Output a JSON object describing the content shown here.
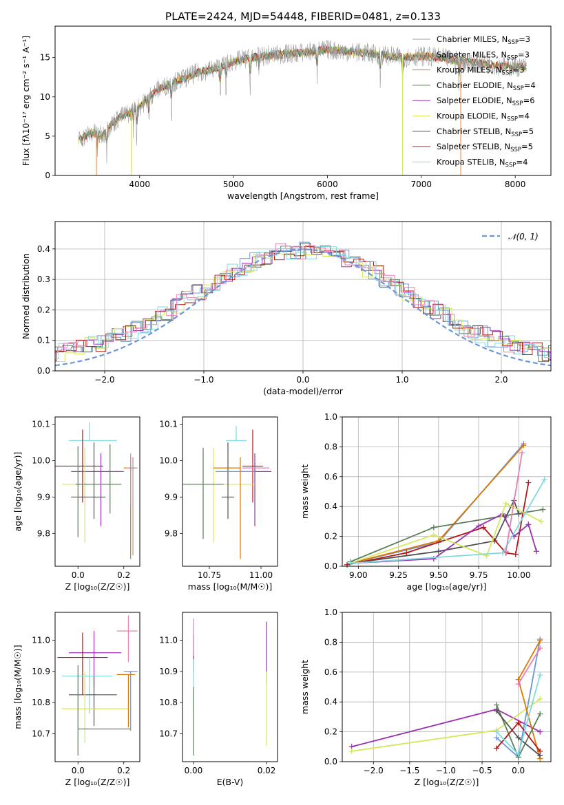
{
  "title": "PLATE=2424, MJD=54448, FIBERID=0481, z=0.133",
  "colors": {
    "Chabrier MILES": "#9e9e9e",
    "Salpeter MILES": "#f08c3c",
    "Kroupa MILES": "#dc7800",
    "Chabrier ELODIE": "#5a7f5a",
    "Salpeter ELODIE": "#9a2fb0",
    "Kroupa ELODIE": "#d4e85a",
    "Chabrier STELIB": "#505050",
    "Salpeter STELIB": "#b01818",
    "Kroupa STELIB": "#7fd8e0",
    "extra_pink": "#e87fb4",
    "extra_blue": "#6b95d8",
    "grid": "#b0b0b0"
  },
  "chart_data": [
    {
      "id": "spectrum",
      "type": "line",
      "xlabel": "wavelength [Angstrom, rest frame]",
      "ylabel": "Flux [fλ10⁻¹⁷ erg cm⁻² s⁻¹ A⁻¹]",
      "xlim": [
        3100,
        8380
      ],
      "ylim": [
        0,
        19
      ],
      "xticks": [
        4000,
        5000,
        6000,
        7000,
        8000
      ],
      "yticks": [
        0,
        5,
        10,
        15
      ],
      "grid": false,
      "legend_position": "right",
      "envelope": {
        "x": [
          3350,
          3500,
          3600,
          3700,
          3800,
          3900,
          4000,
          4100,
          4200,
          4300,
          4400,
          4500,
          4600,
          4700,
          4800,
          4900,
          5000,
          5200,
          5400,
          5600,
          5800,
          6000,
          6200,
          6400,
          6600,
          6800,
          7000,
          7200,
          7400,
          7600,
          7800,
          8000,
          8120
        ],
        "y": [
          4.5,
          5.5,
          5.0,
          6.5,
          7.5,
          8.0,
          8.7,
          10.0,
          11.0,
          11.5,
          12.0,
          12.5,
          13.0,
          13.3,
          13.6,
          14.0,
          14.5,
          15.0,
          15.3,
          15.5,
          15.7,
          16.0,
          15.8,
          15.6,
          15.3,
          15.0,
          15.2,
          15.0,
          14.6,
          14.3,
          14.0,
          13.8,
          13.8
        ]
      },
      "absorption_features": [
        3550,
        3650,
        3934,
        3969,
        4100,
        4340,
        4861,
        4920,
        5175,
        5270,
        5890,
        6563,
        6800,
        7400
      ],
      "series": [
        {
          "name": "Chabrier MILES, N_SSP=3",
          "label": "Chabrier MILES, N",
          "sub": "SSP",
          "value": "=3",
          "color": "Chabrier MILES"
        },
        {
          "name": "Salpeter MILES, N_SSP=3",
          "label": "Salpeter MILES, N",
          "sub": "SSP",
          "value": "=3",
          "color": "Salpeter MILES"
        },
        {
          "name": "Kroupa MILES, N_SSP=3",
          "label": "Kroupa MILES, N",
          "sub": "SSP",
          "value": "=3",
          "color": "Kroupa MILES"
        },
        {
          "name": "Chabrier ELODIE, N_SSP=4",
          "label": "Chabrier ELODIE, N",
          "sub": "SSP",
          "value": "=4",
          "color": "Chabrier ELODIE"
        },
        {
          "name": "Salpeter ELODIE, N_SSP=6",
          "label": "Salpeter ELODIE, N",
          "sub": "SSP",
          "value": "=6",
          "color": "Salpeter ELODIE"
        },
        {
          "name": "Kroupa ELODIE, N_SSP=4",
          "label": "Kroupa ELODIE, N",
          "sub": "SSP",
          "value": "=4",
          "color": "Kroupa ELODIE"
        },
        {
          "name": "Chabrier STELIB, N_SSP=5",
          "label": "Chabrier STELIB, N",
          "sub": "SSP",
          "value": "=5",
          "color": "Chabrier STELIB"
        },
        {
          "name": "Salpeter STELIB, N_SSP=5",
          "label": "Salpeter STELIB, N",
          "sub": "SSP",
          "value": "=5",
          "color": "Salpeter STELIB"
        },
        {
          "name": "Kroupa STELIB, N_SSP=4",
          "label": "Kroupa STELIB, N",
          "sub": "SSP",
          "value": "=4",
          "color": "Kroupa STELIB"
        }
      ]
    },
    {
      "id": "residuals",
      "type": "line",
      "xlabel": "(data-model)/error",
      "ylabel": "Normed distribution",
      "xlim": [
        -2.5,
        2.5
      ],
      "ylim": [
        0,
        0.49
      ],
      "xticks": [
        -2,
        -1,
        0,
        1,
        2
      ],
      "yticks": [
        0.0,
        0.1,
        0.2,
        0.3,
        0.4
      ],
      "grid": true,
      "legend_position": "top-right",
      "reference_curve": {
        "name": "N(0,1)",
        "label": "𝒩(0, 1)",
        "mean": 0,
        "sigma": 1,
        "color": "extra_blue"
      },
      "bin_width": 0.1,
      "histogram_colors": [
        "extra_blue",
        "Chabrier ELODIE",
        "Salpeter ELODIE",
        "Kroupa ELODIE",
        "Salpeter STELIB",
        "extra_pink",
        "Kroupa STELIB"
      ]
    },
    {
      "id": "age_vs_Z",
      "type": "scatter",
      "xlabel": "Z [log₁₀(Z/Z☉)]",
      "ylabel": "age  [log₁₀(age/yr)]",
      "xlim": [
        -0.1,
        0.27
      ],
      "ylim": [
        9.71,
        10.12
      ],
      "xticks": [
        0.0,
        0.2
      ],
      "yticks": [
        9.8,
        9.9,
        10.0,
        10.1
      ],
      "grid": false,
      "points": [
        {
          "x": 0.05,
          "y": 10.055,
          "xerr": [
            0.09,
            0.12
          ],
          "yerr": [
            0.0,
            0.05
          ],
          "color": "Kroupa STELIB"
        },
        {
          "x": 0.02,
          "y": 9.985,
          "xerr": [
            0.12,
            0.09
          ],
          "yerr": [
            0.1,
            0.1
          ],
          "color": "Salpeter STELIB"
        },
        {
          "x": 0.1,
          "y": 9.97,
          "xerr": [
            0.13,
            0.1
          ],
          "yerr": [
            0.15,
            0.05
          ],
          "color": "Salpeter ELODIE"
        },
        {
          "x": 0.03,
          "y": 9.935,
          "xerr": [
            0.1,
            0.15
          ],
          "yerr": [
            0.16,
            0.1
          ],
          "color": "Kroupa ELODIE"
        },
        {
          "x": 0.14,
          "y": 9.935,
          "xerr": [
            0.15,
            0.05
          ],
          "yerr": [
            0.08,
            0.11
          ],
          "color": "Chabrier ELODIE"
        },
        {
          "x": 0.07,
          "y": 9.9,
          "xerr": [
            0.1,
            0.05
          ],
          "yerr": [
            0.06,
            0.15
          ],
          "color": "Chabrier STELIB"
        },
        {
          "x": 0.0,
          "y": 9.97,
          "xerr": [
            0.0,
            0.0
          ],
          "yerr": [
            0.18,
            0.07
          ],
          "color": "Chabrier ELODIE"
        },
        {
          "x": 0.23,
          "y": 9.98,
          "xerr": [
            0.03,
            0.02
          ],
          "yerr": [
            0.25,
            0.03
          ],
          "color": "Kroupa MILES"
        },
        {
          "x": 0.23,
          "y": 9.98,
          "xerr": [
            0.02,
            0.02
          ],
          "yerr": [
            0.1,
            0.04
          ],
          "color": "extra_pink"
        },
        {
          "x": 0.24,
          "y": 9.98,
          "xerr": [
            0.02,
            0.02
          ],
          "yerr": [
            0.24,
            0.03
          ],
          "color": "Chabrier MILES"
        }
      ]
    },
    {
      "id": "age_vs_mass",
      "type": "scatter",
      "xlabel": "mass [log₁₀(M/M☉)]",
      "ylabel": "",
      "xlim": [
        10.62,
        11.08
      ],
      "ylim": [
        9.71,
        10.12
      ],
      "xticks": [
        10.75,
        11.0
      ],
      "yticks": [
        9.8,
        9.9,
        10.0,
        10.1
      ],
      "grid": false,
      "points": [
        {
          "x": 10.88,
          "y": 10.055,
          "xerr": [
            0.05,
            0.05
          ],
          "yerr": [
            0.0,
            0.04
          ],
          "color": "Kroupa STELIB"
        },
        {
          "x": 10.96,
          "y": 9.985,
          "xerr": [
            0.05,
            0.05
          ],
          "yerr": [
            0.1,
            0.1
          ],
          "color": "Salpeter STELIB"
        },
        {
          "x": 10.97,
          "y": 9.97,
          "xerr": [
            0.07,
            0.08
          ],
          "yerr": [
            0.15,
            0.05
          ],
          "color": "Salpeter ELODIE"
        },
        {
          "x": 10.77,
          "y": 9.935,
          "xerr": [
            0.13,
            0.2
          ],
          "yerr": [
            0.16,
            0.1
          ],
          "color": "Kroupa ELODIE"
        },
        {
          "x": 10.72,
          "y": 9.935,
          "xerr": [
            0.1,
            0.1
          ],
          "yerr": [
            0.15,
            0.1
          ],
          "color": "Chabrier ELODIE"
        },
        {
          "x": 10.84,
          "y": 9.9,
          "xerr": [
            0.03,
            0.03
          ],
          "yerr": [
            0.06,
            0.15
          ],
          "color": "Chabrier STELIB"
        },
        {
          "x": 10.9,
          "y": 9.98,
          "xerr": [
            0.13,
            0.0
          ],
          "yerr": [
            0.25,
            0.03
          ],
          "color": "Kroupa MILES"
        },
        {
          "x": 10.9,
          "y": 9.97,
          "xerr": [
            0.12,
            0.07
          ],
          "yerr": [
            0.0,
            0.0
          ],
          "color": "extra_blue"
        },
        {
          "x": 10.96,
          "y": 9.98,
          "xerr": [
            0.05,
            0.08
          ],
          "yerr": [
            0.0,
            0.0
          ],
          "color": "extra_pink"
        }
      ]
    },
    {
      "id": "weight_vs_age",
      "type": "line",
      "xlabel": "age  [log₁₀(age/yr)]",
      "ylabel": "mass weight",
      "xlim": [
        8.9,
        10.2
      ],
      "ylim": [
        0,
        1.0
      ],
      "xticks": [
        9.0,
        9.25,
        9.5,
        9.75,
        10.0
      ],
      "yticks": [
        0.0,
        0.2,
        0.4,
        0.6,
        0.8,
        1.0
      ],
      "grid": true,
      "series": [
        {
          "color": "extra_blue",
          "x": [
            8.95,
            9.5,
            10.03
          ],
          "y": [
            0.02,
            0.16,
            0.82
          ]
        },
        {
          "color": "Kroupa MILES",
          "x": [
            8.95,
            9.5,
            10.03
          ],
          "y": [
            0.02,
            0.17,
            0.81
          ]
        },
        {
          "color": "Chabrier ELODIE",
          "x": [
            8.95,
            9.47,
            10.15
          ],
          "y": [
            0.03,
            0.26,
            0.38
          ]
        },
        {
          "color": "Chabrier STELIB",
          "x": [
            8.95,
            9.5,
            9.85,
            9.92,
            9.97,
            10.0
          ],
          "y": [
            0.02,
            0.1,
            0.17,
            0.33,
            0.44,
            0.35
          ]
        },
        {
          "color": "Salpeter STELIB",
          "x": [
            8.93,
            9.3,
            9.78,
            9.92,
            9.98,
            10.06
          ],
          "y": [
            0.01,
            0.09,
            0.26,
            0.09,
            0.08,
            0.56
          ]
        },
        {
          "color": "Salpeter ELODIE",
          "x": [
            8.95,
            9.47,
            9.75,
            9.9,
            9.97,
            10.06,
            10.11
          ],
          "y": [
            0.02,
            0.05,
            0.27,
            0.35,
            0.2,
            0.28,
            0.1
          ]
        },
        {
          "color": "Kroupa ELODIE",
          "x": [
            8.95,
            9.47,
            9.8,
            9.92,
            10.14
          ],
          "y": [
            0.02,
            0.21,
            0.07,
            0.42,
            0.3
          ]
        },
        {
          "color": "Kroupa STELIB",
          "x": [
            8.95,
            9.9,
            10.16
          ],
          "y": [
            0.02,
            0.09,
            0.58
          ]
        },
        {
          "color": "extra_pink",
          "x": [
            9.92,
            10.02
          ],
          "y": [
            0.1,
            0.76
          ]
        }
      ]
    },
    {
      "id": "mass_vs_Z",
      "type": "scatter",
      "xlabel": "Z [log₁₀(Z/Z☉)]",
      "ylabel": "mass [log₁₀(M/M☉)]",
      "xlim": [
        -0.1,
        0.27
      ],
      "ylim": [
        10.61,
        11.09
      ],
      "xticks": [
        0.0,
        0.2
      ],
      "yticks": [
        10.7,
        10.8,
        10.9,
        11.0
      ],
      "grid": false,
      "points": [
        {
          "x": 0.22,
          "y": 11.03,
          "xerr": [
            0.05,
            0.04
          ],
          "yerr": [
            0.1,
            0.05
          ],
          "color": "extra_pink"
        },
        {
          "x": 0.07,
          "y": 10.96,
          "xerr": [
            0.11,
            0.12
          ],
          "yerr": [
            0.11,
            0.07
          ],
          "color": "Salpeter ELODIE"
        },
        {
          "x": 0.02,
          "y": 10.945,
          "xerr": [
            0.11,
            0.11
          ],
          "yerr": [
            0.12,
            0.08
          ],
          "color": "Salpeter STELIB"
        },
        {
          "x": 0.05,
          "y": 10.885,
          "xerr": [
            0.12,
            0.1
          ],
          "yerr": [
            0.12,
            0.06
          ],
          "color": "Kroupa STELIB"
        },
        {
          "x": 0.07,
          "y": 10.825,
          "xerr": [
            0.11,
            0.1
          ],
          "yerr": [
            0.1,
            0.06
          ],
          "color": "Chabrier STELIB"
        },
        {
          "x": 0.03,
          "y": 10.78,
          "xerr": [
            0.1,
            0.19
          ],
          "yerr": [
            0.11,
            0.12
          ],
          "color": "Kroupa ELODIE"
        },
        {
          "x": 0.12,
          "y": 10.715,
          "xerr": [
            0.12,
            0.11
          ],
          "yerr": [
            0.0,
            0.0
          ],
          "color": "Chabrier ELODIE"
        },
        {
          "x": 0.0,
          "y": 10.8,
          "xerr": [
            0.0,
            0.0
          ],
          "yerr": [
            0.17,
            0.12
          ],
          "color": "Chabrier ELODIE"
        },
        {
          "x": 0.22,
          "y": 10.89,
          "xerr": [
            0.05,
            0.03
          ],
          "yerr": [
            0.17,
            0.0
          ],
          "color": "Kroupa MILES"
        },
        {
          "x": 0.23,
          "y": 10.9,
          "xerr": [
            0.03,
            0.03
          ],
          "yerr": [
            0.19,
            0.0
          ],
          "color": "extra_blue"
        }
      ]
    },
    {
      "id": "mass_vs_ebv",
      "type": "scatter",
      "xlabel": "E(B-V)",
      "ylabel": "",
      "xlim": [
        -0.003,
        0.023
      ],
      "ylim": [
        10.61,
        11.09
      ],
      "xticks": [
        0.0,
        0.02
      ],
      "yticks": [
        10.7,
        10.8,
        10.9,
        11.0
      ],
      "grid": false,
      "points": [
        {
          "x": 0.0,
          "y": 10.96,
          "yerr": [
            0.06,
            0.06
          ],
          "color": "Salpeter STELIB"
        },
        {
          "x": 0.0,
          "y": 10.88,
          "yerr": [
            0.1,
            0.06
          ],
          "color": "Kroupa STELIB"
        },
        {
          "x": 0.0,
          "y": 10.75,
          "yerr": [
            0.12,
            0.1
          ],
          "color": "Chabrier ELODIE"
        },
        {
          "x": 0.0,
          "y": 11.0,
          "yerr": [
            0.05,
            0.07
          ],
          "color": "extra_pink"
        },
        {
          "x": 0.02,
          "y": 10.96,
          "yerr": [
            0.1,
            0.1
          ],
          "color": "Salpeter ELODIE"
        },
        {
          "x": 0.02,
          "y": 10.78,
          "yerr": [
            0.12,
            0.12
          ],
          "color": "Kroupa ELODIE"
        }
      ]
    },
    {
      "id": "weight_vs_Z",
      "type": "line",
      "xlabel": "Z [log₁₀(Z/Z☉)]",
      "ylabel": "mass weight",
      "xlim": [
        -2.43,
        0.45
      ],
      "ylim": [
        0,
        1.0
      ],
      "xticks": [
        -2.0,
        -1.5,
        -1.0,
        -0.5,
        0.0
      ],
      "yticks": [
        0.0,
        0.2,
        0.4,
        0.6,
        0.8,
        1.0
      ],
      "grid": true,
      "series": [
        {
          "color": "Salpeter ELODIE",
          "x": [
            -2.3,
            -0.3,
            0.3
          ],
          "y": [
            0.1,
            0.35,
            0.2
          ]
        },
        {
          "color": "Kroupa ELODIE",
          "x": [
            -2.3,
            -0.3,
            0.3
          ],
          "y": [
            0.07,
            0.21,
            0.42
          ]
        },
        {
          "color": "extra_blue",
          "x": [
            -0.3,
            0.0,
            0.3
          ],
          "y": [
            0.16,
            0.03,
            0.82
          ]
        },
        {
          "color": "Kroupa MILES",
          "x": [
            0.3,
            0.0,
            0.3
          ],
          "y": [
            0.81,
            0.55,
            0.02
          ]
        },
        {
          "color": "Chabrier ELODIE",
          "x": [
            -0.3,
            0.0,
            0.3
          ],
          "y": [
            0.38,
            0.03,
            0.32
          ]
        },
        {
          "color": "Chabrier STELIB",
          "x": [
            -0.3,
            0.0,
            0.3
          ],
          "y": [
            0.34,
            0.16,
            0.04
          ]
        },
        {
          "color": "Salpeter STELIB",
          "x": [
            -0.3,
            0.0,
            0.3
          ],
          "y": [
            0.09,
            0.26,
            0.07
          ]
        },
        {
          "color": "Kroupa STELIB",
          "x": [
            -0.3,
            0.0,
            0.3
          ],
          "y": [
            0.2,
            0.05,
            0.58
          ]
        },
        {
          "color": "extra_pink",
          "x": [
            0.0,
            0.3
          ],
          "y": [
            0.52,
            0.76
          ]
        }
      ]
    }
  ]
}
